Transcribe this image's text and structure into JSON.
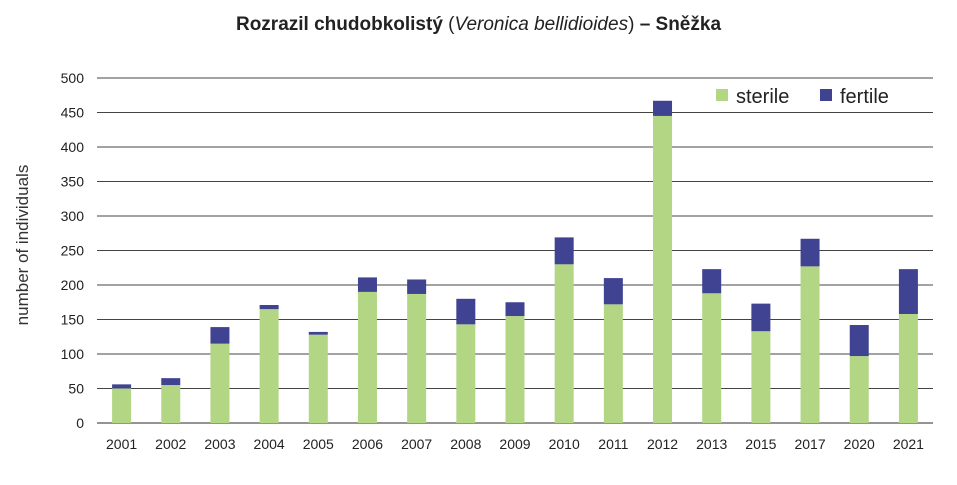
{
  "chart_data": {
    "type": "bar",
    "stacked": true,
    "title": {
      "main": "Rozrazil chudobkolistý",
      "paren_open": "(",
      "latin": "Veronica bellidioides",
      "paren_close": ")",
      "suffix": "– Sněžka"
    },
    "xlabel": "",
    "ylabel": "number of individuals",
    "ylim": [
      0,
      500
    ],
    "yticks": [
      0,
      50,
      100,
      150,
      200,
      250,
      300,
      350,
      400,
      450,
      500
    ],
    "grid": true,
    "legend_position": "top-right",
    "categories": [
      "2001",
      "2002",
      "2003",
      "2004",
      "2005",
      "2006",
      "2007",
      "2008",
      "2009",
      "2010",
      "2011",
      "2012",
      "2013",
      "2015",
      "2017",
      "2020",
      "2021"
    ],
    "series": [
      {
        "name": "sterile",
        "color": "#b3d685",
        "values": [
          50,
          55,
          115,
          165,
          128,
          190,
          187,
          143,
          155,
          230,
          172,
          445,
          188,
          133,
          227,
          97,
          158
        ]
      },
      {
        "name": "fertile",
        "color": "#3f4391",
        "values": [
          6,
          10,
          24,
          6,
          4,
          21,
          21,
          37,
          20,
          39,
          38,
          22,
          35,
          40,
          40,
          45,
          65
        ]
      }
    ]
  }
}
